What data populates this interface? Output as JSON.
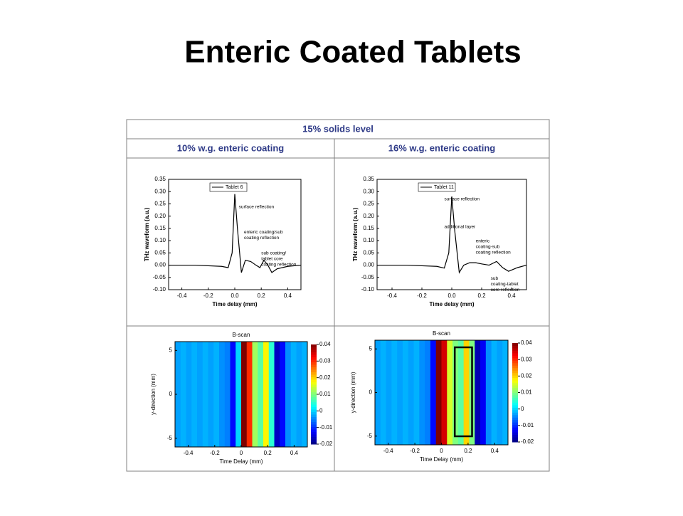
{
  "title": "Enteric Coated Tablets",
  "table": {
    "header": "15% solids level",
    "columns": [
      "10% w.g. enteric coating",
      "16% w.g. enteric coating"
    ]
  },
  "chart_data": [
    {
      "type": "line",
      "xlabel": "Time delay (mm)",
      "ylabel": "THz waveform (a.u.)",
      "xlim": [
        -0.5,
        0.5
      ],
      "ylim": [
        -0.1,
        0.35
      ],
      "xticks": [
        -0.4,
        -0.2,
        {
          "value": 0,
          "label": "0.0"
        },
        0.2,
        0.4
      ],
      "yticks": [
        {
          "value": -0.1,
          "label": "-0.10"
        },
        -0.05,
        {
          "value": 0,
          "label": "0.00"
        },
        0.05,
        {
          "value": 0.1,
          "label": "0.10"
        },
        0.15,
        {
          "value": 0.2,
          "label": "0.20"
        },
        0.25,
        {
          "value": 0.3,
          "label": "0.30"
        },
        0.35
      ],
      "x": [
        -0.5,
        -0.3,
        -0.1,
        -0.05,
        -0.02,
        0,
        0.02,
        0.05,
        0.08,
        0.12,
        0.16,
        0.19,
        0.22,
        0.25,
        0.28,
        0.32,
        0.4,
        0.5
      ],
      "series": [
        {
          "name": "Tablet 6",
          "color": "#000000",
          "values": [
            0,
            0,
            -0.005,
            -0.01,
            0.05,
            0.29,
            0.15,
            -0.03,
            0.02,
            0.015,
            0,
            -0.01,
            0.02,
            0,
            -0.03,
            -0.015,
            -0.005,
            0
          ]
        }
      ],
      "annotations": [
        [
          "surface reflection"
        ],
        [
          "enteric coating/sub",
          "coating reflection"
        ],
        [
          "sub coating/",
          "tablet core",
          "coating reflection"
        ]
      ]
    },
    {
      "type": "line",
      "xlabel": "Time delay (mm)",
      "ylabel": "THz waveform (a.u.)",
      "xlim": [
        -0.5,
        0.5
      ],
      "ylim": [
        -0.1,
        0.35
      ],
      "xticks": [
        -0.4,
        -0.2,
        {
          "value": 0,
          "label": "0.0"
        },
        0.2,
        0.4
      ],
      "yticks": [
        {
          "value": -0.1,
          "label": "-0.10"
        },
        -0.05,
        {
          "value": 0,
          "label": "0.00"
        },
        0.05,
        {
          "value": 0.1,
          "label": "0.10"
        },
        0.15,
        {
          "value": 0.2,
          "label": "0.20"
        },
        0.25,
        {
          "value": 0.3,
          "label": "0.30"
        },
        0.35
      ],
      "x": [
        -0.5,
        -0.3,
        -0.1,
        -0.05,
        -0.02,
        0,
        0.02,
        0.05,
        0.08,
        0.12,
        0.16,
        0.2,
        0.25,
        0.3,
        0.34,
        0.38,
        0.44,
        0.5
      ],
      "series": [
        {
          "name": "Tablet 11",
          "color": "#000000",
          "values": [
            0,
            0,
            -0.005,
            -0.012,
            0.05,
            0.28,
            0.14,
            -0.03,
            0.0,
            0.01,
            0.01,
            0.005,
            0.0,
            0.015,
            -0.01,
            -0.025,
            -0.01,
            0
          ]
        }
      ],
      "annotations": [
        [
          "surface reflection"
        ],
        [
          "additional layer"
        ],
        [
          "enteric",
          "coating-sub",
          "coating reflection"
        ],
        [
          "sub",
          "coating-tablet",
          "core reflection"
        ]
      ]
    },
    {
      "type": "heatmap",
      "title": "B-scan",
      "xlabel": "Time Delay (mm)",
      "ylabel": "y-direction (mm)",
      "xlim": [
        -0.5,
        0.5
      ],
      "ylim": [
        -6,
        6
      ],
      "xticks": [
        -0.4,
        -0.2,
        0,
        0.2,
        0.4
      ],
      "yticks": [
        -5,
        0,
        5
      ],
      "clim": [
        -0.02,
        0.04
      ],
      "cticks": [
        -0.02,
        -0.01,
        0,
        0.01,
        0.02,
        0.03,
        0.04
      ],
      "values": [
        -0.003,
        -0.002,
        -0.003,
        -0.002,
        -0.003,
        -0.002,
        -0.003,
        -0.002,
        -0.004,
        -0.005,
        -0.012,
        0,
        0.04,
        0.03,
        0.012,
        0.008,
        0.018,
        0.005,
        -0.016,
        -0.012,
        -0.004,
        -0.002,
        -0.003,
        -0.002
      ]
    },
    {
      "type": "heatmap",
      "title": "B-scan",
      "xlabel": "Time Delay (mm)",
      "ylabel": "y-direction (mm)",
      "xlim": [
        -0.5,
        0.5
      ],
      "ylim": [
        -6,
        6
      ],
      "xticks": [
        -0.4,
        -0.2,
        0,
        0.2,
        0.4
      ],
      "yticks": [
        -5,
        0,
        5
      ],
      "clim": [
        -0.02,
        0.04
      ],
      "cticks": [
        -0.02,
        -0.01,
        0,
        0.01,
        0.02,
        0.03,
        0.04
      ],
      "values": [
        -0.003,
        -0.002,
        -0.003,
        -0.002,
        -0.003,
        -0.002,
        -0.003,
        -0.002,
        -0.004,
        -0.005,
        -0.012,
        0.04,
        0.035,
        0.015,
        0.01,
        0.008,
        0.02,
        0.01,
        -0.017,
        -0.013,
        -0.004,
        -0.002,
        -0.003,
        -0.002
      ]
    }
  ]
}
